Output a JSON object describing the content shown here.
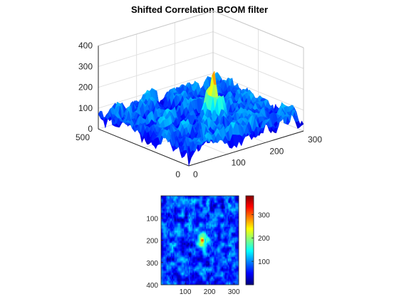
{
  "chart_data": [
    {
      "type": "surface",
      "title": "Shifted Correlation BCOM filter",
      "x_range": [
        0,
        300
      ],
      "y_range": [
        0,
        500
      ],
      "z_range": [
        0,
        400
      ],
      "x_ticks": [
        "0",
        "100",
        "200",
        "300"
      ],
      "y_ticks": [
        "0",
        "500"
      ],
      "z_ticks": [
        "0",
        "100",
        "200",
        "300",
        "400"
      ],
      "colormap": "jet",
      "peak": {
        "x": 160,
        "y": 200,
        "z": 340
      },
      "baseline_level": 70,
      "grid": true
    },
    {
      "type": "heatmap",
      "title": "",
      "x_range": [
        0,
        320
      ],
      "y_range": [
        0,
        400
      ],
      "x_ticks": [
        "100",
        "200",
        "300"
      ],
      "y_ticks": [
        "100",
        "200",
        "300",
        "400"
      ],
      "colorbar_ticks": [
        "100",
        "200",
        "300"
      ],
      "colorbar_range": [
        0,
        380
      ],
      "colormap": "jet",
      "peak": {
        "x": 160,
        "y": 200
      },
      "grid": false
    }
  ]
}
